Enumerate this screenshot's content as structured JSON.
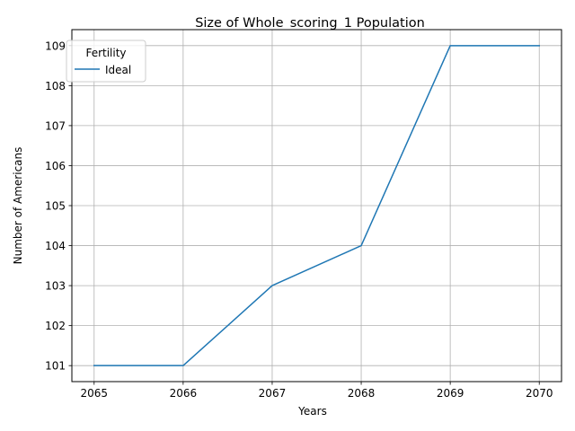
{
  "chart_data": {
    "type": "line",
    "title": "Size of Whole_scoring_1 Population",
    "xlabel": "Years",
    "ylabel": "Number of Americans",
    "x": [
      2065,
      2066,
      2067,
      2068,
      2069,
      2070
    ],
    "series": [
      {
        "name": "Ideal",
        "values": [
          101,
          101,
          103,
          104,
          109,
          109
        ],
        "color": "#1f77b4"
      }
    ],
    "xticks": [
      "2065",
      "2066",
      "2067",
      "2068",
      "2069",
      "2070"
    ],
    "yticks": [
      "101",
      "102",
      "103",
      "104",
      "105",
      "106",
      "107",
      "108",
      "109"
    ],
    "xlim": [
      2064.75,
      2070.25
    ],
    "ylim": [
      100.6,
      109.4
    ],
    "grid": true,
    "legend": {
      "title": "Fertility",
      "placement": "top-left"
    }
  }
}
